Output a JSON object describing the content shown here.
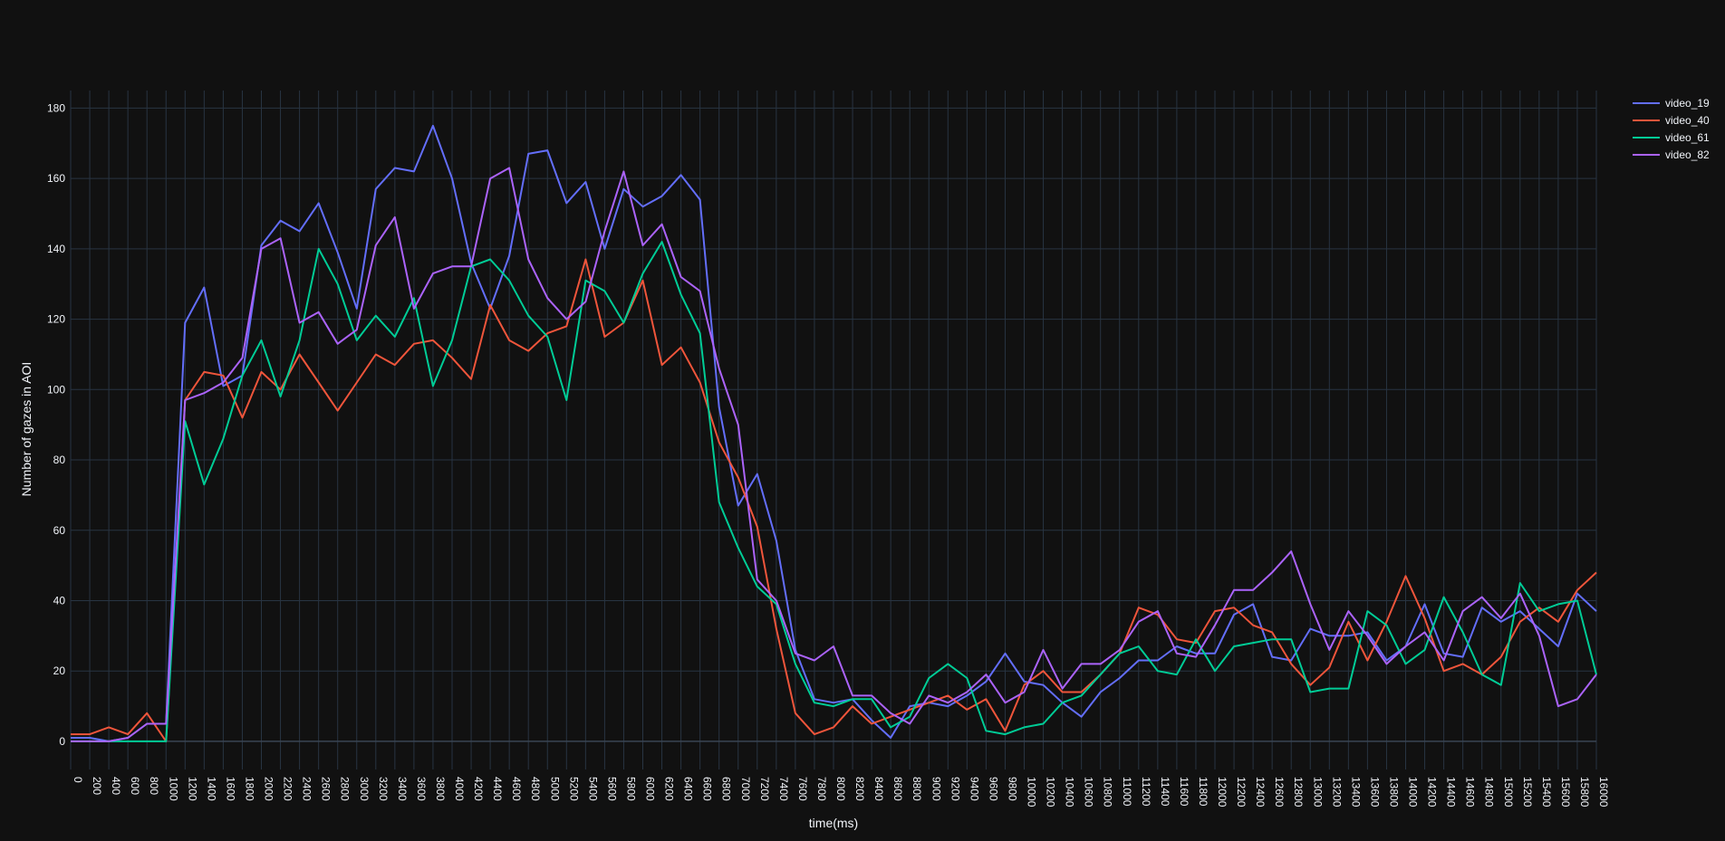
{
  "chart_data": {
    "type": "line",
    "title": "",
    "xlabel": "time(ms)",
    "ylabel": "Number of gazes in AOI",
    "x": [
      0,
      200,
      400,
      600,
      800,
      1000,
      1200,
      1400,
      1600,
      1800,
      2000,
      2200,
      2400,
      2600,
      2800,
      3000,
      3200,
      3400,
      3600,
      3800,
      4000,
      4200,
      4400,
      4600,
      4800,
      5000,
      5200,
      5400,
      5600,
      5800,
      6000,
      6200,
      6400,
      6600,
      6800,
      7000,
      7200,
      7400,
      7600,
      7800,
      8000,
      8200,
      8400,
      8600,
      8800,
      9000,
      9200,
      9400,
      9600,
      9800,
      10000,
      10200,
      10400,
      10600,
      10800,
      11000,
      11200,
      11400,
      11600,
      11800,
      12000,
      12200,
      12400,
      12600,
      12800,
      13000,
      13200,
      13400,
      13600,
      13800,
      14000,
      14200,
      14400,
      14600,
      14800,
      15000,
      15200,
      15400,
      15600,
      15800,
      16000
    ],
    "x_tick_labels": [
      "0",
      "200",
      "400",
      "600",
      "800",
      "1000",
      "1200",
      "1400",
      "1600",
      "1800",
      "2000",
      "2200",
      "2400",
      "2600",
      "2800",
      "3000",
      "3200",
      "3400",
      "3600",
      "3800",
      "4000",
      "4200",
      "4400",
      "4600",
      "4800",
      "5000",
      "5200",
      "5400",
      "5600",
      "5800",
      "6000",
      "6200",
      "6400",
      "6600",
      "6800",
      "7000",
      "7200",
      "7400",
      "7600",
      "7800",
      "8000",
      "8200",
      "8400",
      "8600",
      "8800",
      "9000",
      "9200",
      "9400",
      "9600",
      "9800",
      "10000",
      "10200",
      "10400",
      "10600",
      "10800",
      "11000",
      "11200",
      "11400",
      "11600",
      "11800",
      "12000",
      "12200",
      "12400",
      "12600",
      "12800",
      "13000",
      "13200",
      "13400",
      "13600",
      "13800",
      "14000",
      "14200",
      "14400",
      "14600",
      "14800",
      "15000",
      "15200",
      "15400",
      "15600",
      "15800",
      "16000"
    ],
    "y_tick_labels": [
      "0",
      "20",
      "40",
      "60",
      "80",
      "100",
      "120",
      "140",
      "160",
      "180"
    ],
    "y_ticks": [
      0,
      20,
      40,
      60,
      80,
      100,
      120,
      140,
      160,
      180
    ],
    "xlim": [
      0,
      16000
    ],
    "ylim": [
      -8,
      185
    ],
    "grid": true,
    "legend_position": "top-right",
    "series": [
      {
        "name": "video_19",
        "color": "#636efa",
        "values": [
          1,
          1,
          0,
          1,
          5,
          5,
          119,
          129,
          101,
          104,
          141,
          148,
          145,
          153,
          139,
          123,
          157,
          163,
          162,
          175,
          160,
          136,
          123,
          138,
          167,
          168,
          153,
          159,
          140,
          157,
          152,
          155,
          161,
          154,
          95,
          67,
          76,
          57,
          26,
          12,
          11,
          12,
          6,
          1,
          10,
          11,
          10,
          13,
          17,
          25,
          17,
          16,
          11,
          7,
          14,
          18,
          23,
          23,
          27,
          25,
          25,
          36,
          39,
          24,
          23,
          32,
          30,
          30,
          31,
          23,
          27,
          39,
          25,
          24,
          38,
          34,
          37,
          32,
          27,
          42,
          37
        ]
      },
      {
        "name": "video_40",
        "color": "#ef553b",
        "values": [
          2,
          2,
          4,
          2,
          8,
          0,
          97,
          105,
          104,
          92,
          105,
          100,
          110,
          102,
          94,
          102,
          110,
          107,
          113,
          114,
          109,
          103,
          124,
          114,
          111,
          116,
          118,
          137,
          115,
          119,
          131,
          107,
          112,
          102,
          85,
          75,
          61,
          32,
          8,
          2,
          4,
          10,
          5,
          7,
          9,
          11,
          13,
          9,
          12,
          3,
          16,
          20,
          14,
          14,
          19,
          25,
          38,
          36,
          29,
          28,
          37,
          38,
          33,
          31,
          22,
          16,
          21,
          34,
          23,
          34,
          47,
          35,
          20,
          22,
          19,
          24,
          34,
          38,
          34,
          43,
          48
        ]
      },
      {
        "name": "video_61",
        "color": "#00cc96",
        "values": [
          0,
          0,
          0,
          0,
          0,
          0,
          91,
          73,
          86,
          104,
          114,
          98,
          114,
          140,
          130,
          114,
          121,
          115,
          126,
          101,
          114,
          135,
          137,
          131,
          121,
          115,
          97,
          131,
          128,
          119,
          133,
          142,
          127,
          116,
          68,
          55,
          44,
          39,
          22,
          11,
          10,
          12,
          12,
          4,
          7,
          18,
          22,
          18,
          3,
          2,
          4,
          5,
          11,
          13,
          19,
          25,
          27,
          20,
          19,
          29,
          20,
          27,
          28,
          29,
          29,
          14,
          15,
          15,
          37,
          33,
          22,
          26,
          41,
          31,
          19,
          16,
          45,
          37,
          39,
          40,
          19
        ]
      },
      {
        "name": "video_82",
        "color": "#ab63fa",
        "values": [
          0,
          0,
          0,
          1,
          5,
          5,
          97,
          99,
          102,
          109,
          140,
          143,
          119,
          122,
          113,
          117,
          141,
          149,
          123,
          133,
          135,
          135,
          160,
          163,
          137,
          126,
          120,
          125,
          145,
          162,
          141,
          147,
          132,
          128,
          106,
          90,
          46,
          40,
          25,
          23,
          27,
          13,
          13,
          8,
          5,
          13,
          11,
          14,
          19,
          11,
          14,
          26,
          15,
          22,
          22,
          26,
          34,
          37,
          25,
          24,
          33,
          43,
          43,
          48,
          54,
          39,
          26,
          37,
          30,
          22,
          27,
          31,
          23,
          37,
          41,
          35,
          42,
          30,
          10,
          12,
          19
        ]
      }
    ]
  }
}
